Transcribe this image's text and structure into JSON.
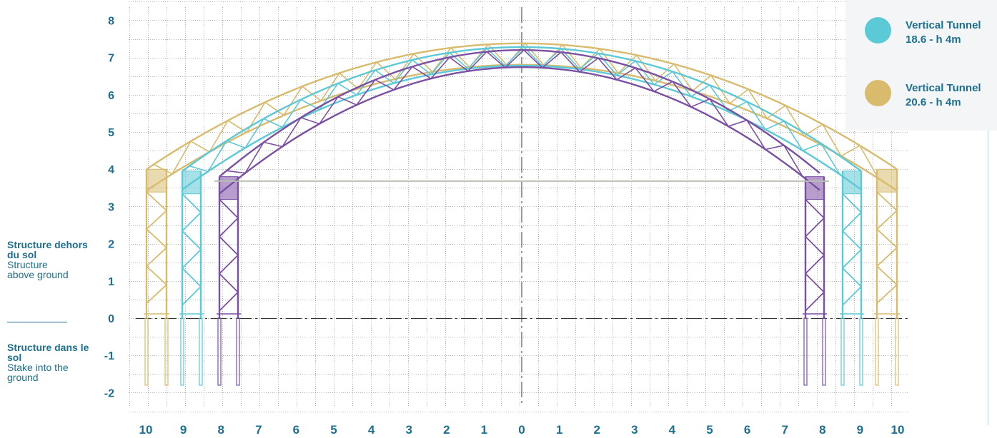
{
  "axis": {
    "y_labels": [
      "8",
      "7",
      "6",
      "5",
      "4",
      "3",
      "2",
      "1",
      "0",
      "-1",
      "-2"
    ],
    "x_labels": [
      "10",
      "9",
      "8",
      "7",
      "6",
      "5",
      "4",
      "3",
      "2",
      "1",
      "0",
      "1",
      "2",
      "3",
      "4",
      "5",
      "6",
      "7",
      "8",
      "9",
      "10"
    ]
  },
  "side_labels": {
    "above": {
      "title": "Structure dehors du sol",
      "subtitle": "Structure above ground"
    },
    "below": {
      "title": "Structure dans le sol",
      "subtitle": "Stake into the ground"
    }
  },
  "legend": [
    {
      "label_line1": "Vertical Tunnel",
      "label_line2": "18.6 - h 4m",
      "color": "#5cc9d6"
    },
    {
      "label_line1": "Vertical Tunnel",
      "label_line2": "20.6 - h 4m",
      "color": "#d8bb6d"
    }
  ],
  "colors": {
    "axis_text": "#1d6f8f",
    "purple": "#7b4fa2",
    "cyan": "#5cc9d6",
    "gold": "#d8bb6d",
    "grid": "#9a9a9a",
    "baseline": "#333333",
    "plate": "#b9bfb2"
  }
}
